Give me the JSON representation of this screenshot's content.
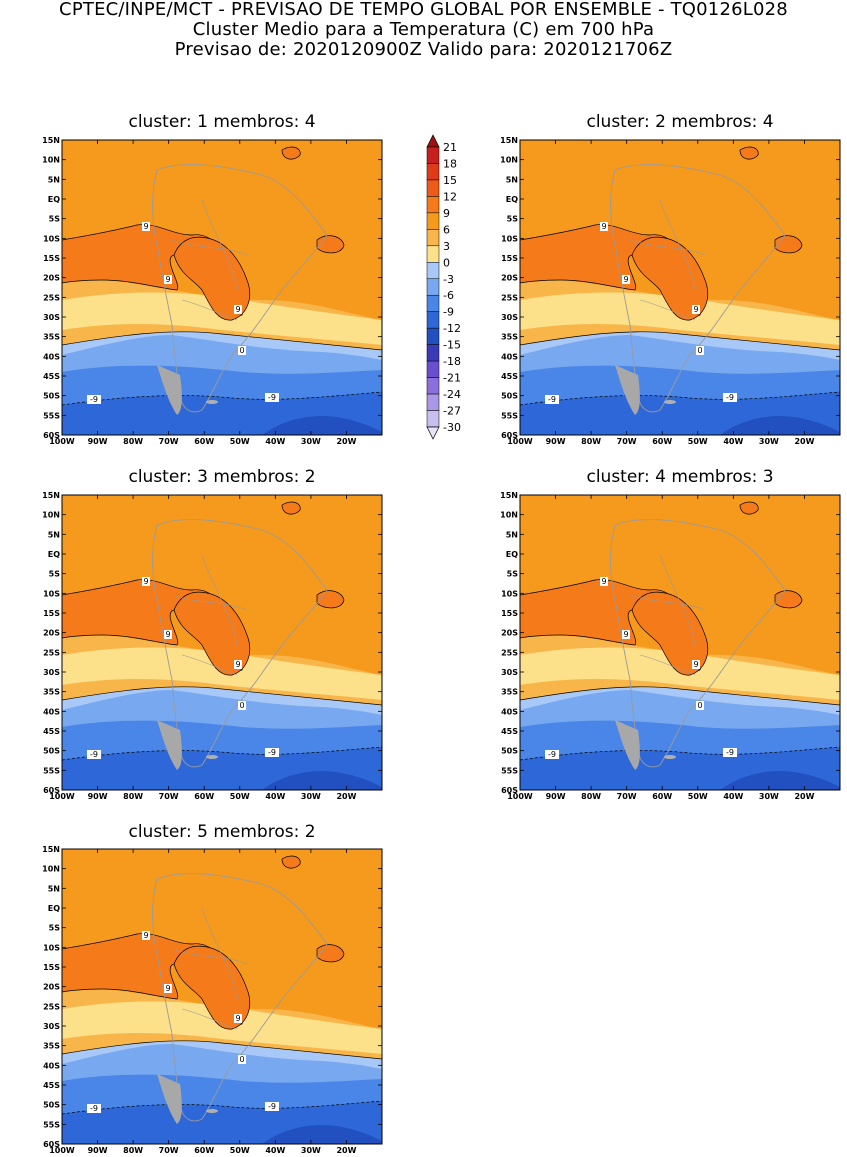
{
  "header": {
    "line1": "CPTEC/INPE/MCT - PREVISAO DE TEMPO GLOBAL POR ENSEMBLE - TQ0126L028",
    "line2": "Cluster Medio para a Temperatura (C) em 700 hPa",
    "line3": "Previsao de: 2020120900Z   Valido para: 2020121706Z"
  },
  "axes": {
    "lat_labels": [
      "15N",
      "10N",
      "5N",
      "EQ",
      "5S",
      "10S",
      "15S",
      "20S",
      "25S",
      "30S",
      "35S",
      "40S",
      "45S",
      "50S",
      "55S",
      "60S"
    ],
    "lon_labels": [
      "100W",
      "90W",
      "80W",
      "70W",
      "60W",
      "50W",
      "40W",
      "30W",
      "20W"
    ]
  },
  "panels": [
    {
      "title": "cluster: 1   membros: 4",
      "labels": {
        "c9a": "9",
        "c9b": "9",
        "c9c": "9",
        "c0": "0",
        "cm9a": "-9",
        "cm9b": "-9"
      }
    },
    {
      "title": "cluster: 2   membros: 4",
      "labels": {
        "c9a": "9",
        "c9b": "9",
        "c9c": "9",
        "c0": "0",
        "cm9a": "-9",
        "cm9b": "-9"
      }
    },
    {
      "title": "cluster: 3   membros: 2",
      "labels": {
        "c9a": "9",
        "c9b": "9",
        "c9c": "9",
        "c0": "0",
        "cm9a": "-9",
        "cm9b": "-9"
      }
    },
    {
      "title": "cluster: 4   membros: 3",
      "labels": {
        "c9a": "9",
        "c9b": "9",
        "c9c": "9",
        "c0": "0",
        "cm9a": "-9",
        "cm9b": "-9"
      }
    },
    {
      "title": "cluster: 5   membros: 2",
      "labels": {
        "c9a": "9",
        "c9b": "9",
        "c9c": "9",
        "c0": "0",
        "cm9a": "-9",
        "cm9b": "-9"
      }
    }
  ],
  "colorbar": {
    "levels": [
      "21",
      "18",
      "15",
      "12",
      "9",
      "6",
      "3",
      "0",
      "-3",
      "-6",
      "-9",
      "-12",
      "-15",
      "-18",
      "-21",
      "-24",
      "-27",
      "-30"
    ],
    "colors": {
      "above_21": "#a01010",
      "18_21": "#c81e1e",
      "15_18": "#e03a1a",
      "12_15": "#f05a18",
      "9_12": "#f57a1a",
      "6_9": "#f59a1c",
      "3_6": "#f8b64a",
      "0_3": "#fde08a",
      "m3_0": "#a8c8f8",
      "m6_m3": "#78a8f0",
      "m9_m6": "#4a86e8",
      "m12_m9": "#2e68d8",
      "m15_m12": "#2250c0",
      "m18_m15": "#3a3ab8",
      "m21_m18": "#6a50d0",
      "m24_m21": "#8a70dc",
      "m27_m24": "#aa98e6",
      "m30_m27": "#c8bef0",
      "below_m30": "#e8e4f8"
    }
  }
}
